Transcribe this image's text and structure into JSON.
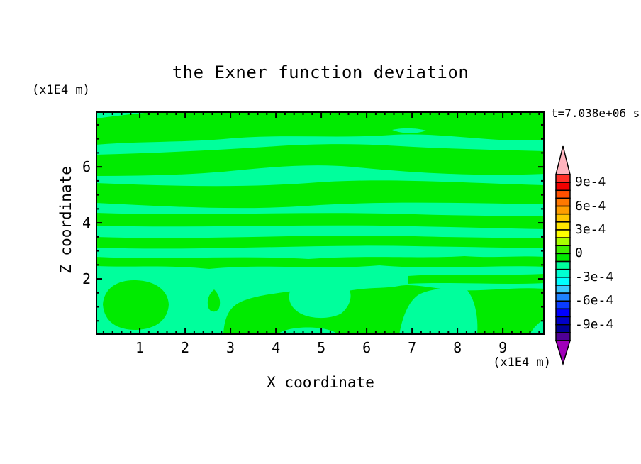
{
  "title": "the Exner function deviation",
  "timestamp": "t=7.038e+06 s",
  "axes": {
    "x_title": "X coordinate",
    "y_title": "Z coordinate",
    "x_unit": "(x1E4 m)",
    "y_unit": "(x1E4 m)"
  },
  "chart_data": {
    "type": "heatmap",
    "subtype": "filled-contour",
    "title": "the Exner function deviation",
    "xlabel": "X coordinate",
    "ylabel": "Z coordinate",
    "x_unit_label": "(x1E4 m)",
    "y_unit_label": "(x1E4 m)",
    "annotation": "t=7.038e+06 s",
    "x_range": [
      0.03,
      9.92
    ],
    "y_range": [
      0,
      7.98
    ],
    "x_major_ticks": [
      1,
      2,
      3,
      4,
      5,
      6,
      7,
      8,
      9
    ],
    "x_minor_step": 0.2,
    "y_major_ticks": [
      2,
      4,
      6
    ],
    "y_minor_step": 0.5,
    "field_note": "Exner function deviation stays within -1e-4..+1e-4: wavy horizontal bands of slightly positive (green) and slightly negative (spring green) values; stripes in upper region, blobs below z=2.5",
    "colorbar": {
      "value_top": 0.001,
      "value_step": 0.0001,
      "n_segments": 21,
      "labels": [
        "9e-4",
        "6e-4",
        "3e-4",
        "0",
        "-3e-4",
        "-6e-4",
        "-9e-4"
      ],
      "label_boundary_index": [
        1,
        4,
        7,
        10,
        13,
        16,
        19
      ],
      "colors_top_to_bottom": [
        "#FF3028",
        "#F20000",
        "#FF5000",
        "#FF7800",
        "#FF9E00",
        "#FFC800",
        "#FFE600",
        "#FFFF00",
        "#A8FF00",
        "#3CF000",
        "#00EB00",
        "#00FF9C",
        "#00FFD2",
        "#00FFFF",
        "#3CC8FF",
        "#1E82FF",
        "#0A3CFF",
        "#0000FF",
        "#0000C8",
        "#000096",
        "#500096"
      ],
      "over_color": "#FFB4BE",
      "under_color": "#A000B9"
    },
    "contour": {
      "positive_color": "#00EB00",
      "negative_color": "#00FF9C",
      "positive_paths": [
        "M0,10 C40,5 75,0 110,0 L633,0 L633,40 C560,45 490,29 420,33 C340,39 260,31 180,39 C120,44 60,42 0,47 Z",
        "M0,61 C80,59 160,55 240,50 C310,45 370,45 430,49 C500,53 565,54 633,56 L633,88 C540,92 450,87 360,78 C300,73 240,79 180,85 C120,90 60,91 0,91 Z",
        "M0,101 C100,105 200,108 300,101 C400,93 500,100 633,104 L633,131 C520,129 400,126 300,133 C200,140 100,134 0,129 Z",
        "M0,143 C150,148 300,140 450,145 C510,147 575,147 633,148 L633,166 C575,165 510,163 450,162 C300,158 150,165 0,161 Z",
        "M0,177 C150,182 300,172 450,176 C520,178 580,178 633,179 L633,193 C580,192 520,191 450,190 C300,187 150,197 0,192 Z",
        "M0,205 C100,210 200,202 300,208 C380,202 460,208 520,204 C560,207 600,203 633,205 L633,219 C560,216 480,224 400,217 C320,224 240,214 160,222 C100,216 50,220 0,218 Z",
        "M440,232 C500,228 570,232 633,229 L633,242 C570,245 500,240 440,243 Z",
        "M10,272 C12,248 32,237 57,238 C84,239 102,252 103,272 C102,293 86,307 57,308 C30,308 12,297 10,272 Z",
        "M167,251 C174,258 177,268 174,277 C171,284 162,284 159,277 C156,267 159,258 167,251 Z",
        "M180,315 C181,295 186,281 197,273 C212,262 242,258 272,254 C302,250 332,257 362,252 C384,248 406,250 428,246 C450,242 480,251 510,252 C550,254 590,247 633,250 L633,315 Z"
      ],
      "negative_overlay_paths": [
        "M418,26 C432,23 452,23 466,27 C452,32 432,32 418,26 Z",
        "M428,315 C432,292 440,268 456,258 C472,250 500,247 522,250 C534,262 540,288 538,315 Z",
        "M276,250 C288,238 336,235 354,246 C364,256 360,274 346,285 C326,295 296,292 283,281 C272,272 270,259 276,250 Z",
        "M256,315 C268,301 330,301 342,315 Z",
        "M612,315 L633,315 L633,293 C624,298 616,306 612,315 Z"
      ]
    }
  }
}
